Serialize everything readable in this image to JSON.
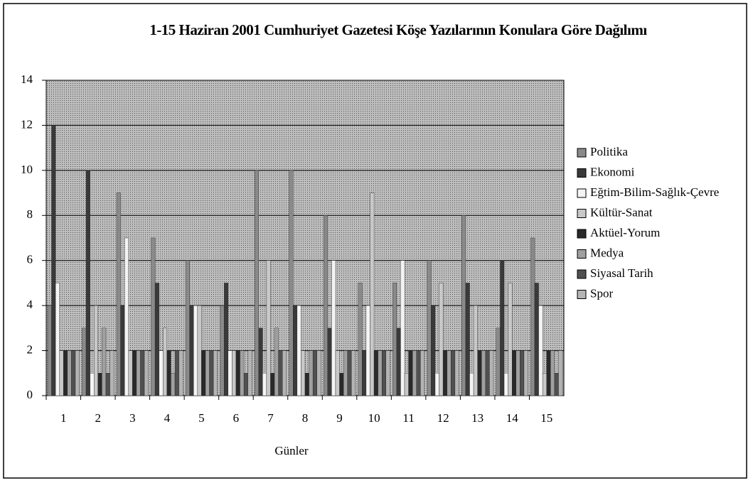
{
  "chart_data": {
    "type": "bar",
    "title": "1-15 Haziran 2001 Cumhuriyet Gazetesi Köşe Yazılarının Konulara Göre Dağılımı",
    "xlabel": "Günler",
    "categories": [
      "1",
      "2",
      "3",
      "4",
      "5",
      "6",
      "7",
      "8",
      "9",
      "10",
      "11",
      "12",
      "13",
      "14",
      "15"
    ],
    "series": [
      {
        "name": "Politika",
        "color": "#8a8a8a",
        "values": [
          4,
          3,
          9,
          7,
          6,
          4,
          10,
          10,
          8,
          5,
          5,
          6,
          8,
          3,
          7
        ]
      },
      {
        "name": "Ekonomi",
        "color": "#3a3a3a",
        "values": [
          12,
          10,
          4,
          5,
          4,
          5,
          3,
          4,
          3,
          2,
          3,
          4,
          5,
          6,
          5
        ]
      },
      {
        "name": "Eğtim-Bilim-Sağlık-Çevre",
        "color": "#f4f4f4",
        "values": [
          5,
          1,
          7,
          2,
          4,
          2,
          1,
          4,
          6,
          4,
          6,
          1,
          1,
          1,
          4
        ]
      },
      {
        "name": "Kültür-Sanat",
        "color": "#c8c8c8",
        "values": [
          2,
          4,
          2,
          3,
          4,
          2,
          6,
          2,
          2,
          9,
          1,
          5,
          4,
          5,
          1
        ]
      },
      {
        "name": "Aktüel-Yorum",
        "color": "#2a2a2a",
        "values": [
          2,
          1,
          2,
          2,
          2,
          2,
          1,
          1,
          1,
          2,
          2,
          2,
          2,
          2,
          2
        ]
      },
      {
        "name": "Medya",
        "color": "#a0a0a0",
        "values": [
          2,
          3,
          2,
          1,
          2,
          2,
          3,
          2,
          2,
          2,
          2,
          2,
          2,
          2,
          2
        ]
      },
      {
        "name": "Siyasal Tarih",
        "color": "#505050",
        "values": [
          2,
          1,
          2,
          2,
          2,
          1,
          2,
          2,
          2,
          2,
          2,
          2,
          2,
          2,
          1
        ]
      },
      {
        "name": "Spor",
        "color": "#b4b4b4",
        "values": [
          2,
          2,
          2,
          2,
          2,
          2,
          2,
          2,
          2,
          2,
          2,
          2,
          2,
          2,
          2
        ]
      }
    ],
    "ylim": [
      0,
      14
    ],
    "yticks": [
      0,
      2,
      4,
      6,
      8,
      10,
      12,
      14
    ],
    "grid": true,
    "legend": "right"
  }
}
